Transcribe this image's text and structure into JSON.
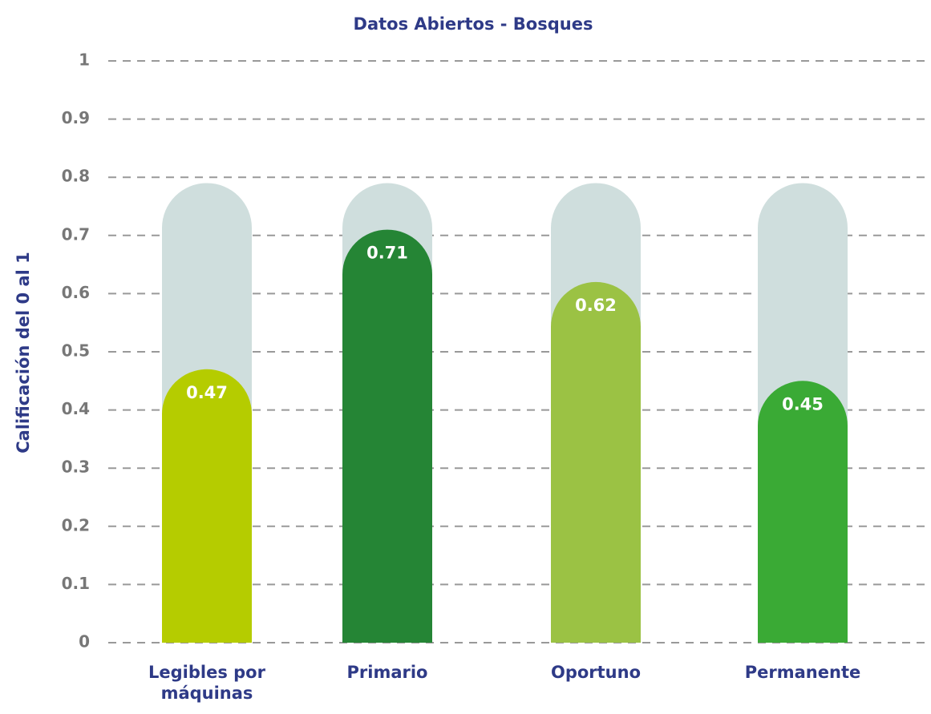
{
  "chart_data": {
    "type": "bar",
    "title": "Datos Abiertos - Bosques",
    "y_label": "Calificación del 0 al 1",
    "categories": [
      "Legibles por máquinas",
      "Primario",
      "Oportuno",
      "Permanente"
    ],
    "values": [
      0.47,
      0.71,
      0.62,
      0.45
    ],
    "colors": [
      "#b5cc00",
      "#258535",
      "#9bc244",
      "#3aaa35"
    ],
    "track": {
      "value": 0.79,
      "color": "#cfdedd"
    },
    "ylim": [
      0,
      1
    ],
    "yticks": [
      0,
      0.1,
      0.2,
      0.3,
      0.4,
      0.5,
      0.6,
      0.7,
      0.8,
      0.9,
      1
    ],
    "grid": true
  }
}
